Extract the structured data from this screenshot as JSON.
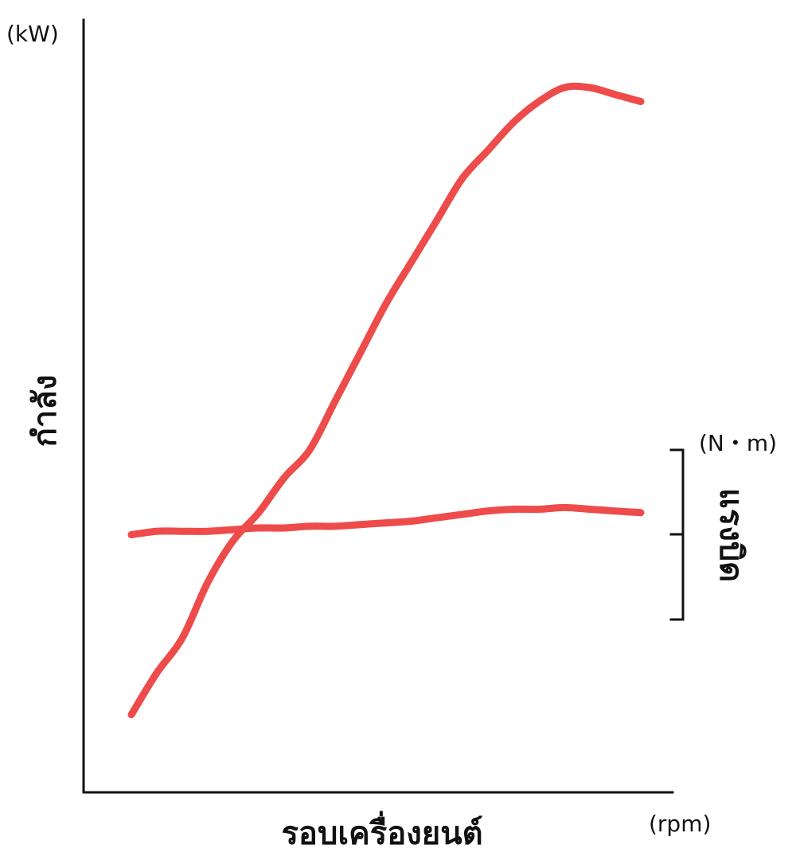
{
  "chart_data": {
    "type": "line",
    "xlabel": "รอบเครื่องยนต์",
    "xunit": "(rpm)",
    "ylabel": "กำลัง",
    "yunit": "(kW)",
    "y2label": "แรงบิด",
    "y2unit": "(N・m)",
    "line_color": "#ee4b4b",
    "axis_color": "#111111",
    "ticks": "none",
    "grid": false,
    "x": [
      0,
      0.05,
      0.1,
      0.15,
      0.2,
      0.25,
      0.3,
      0.35,
      0.4,
      0.45,
      0.5,
      0.55,
      0.6,
      0.65,
      0.7,
      0.75,
      0.8,
      0.85,
      0.9,
      0.95,
      1.0
    ],
    "series": [
      {
        "values": [
          0.1,
          0.16,
          0.21,
          0.29,
          0.35,
          0.39,
          0.44,
          0.48,
          0.55,
          0.62,
          0.69,
          0.75,
          0.81,
          0.87,
          0.91,
          0.95,
          0.98,
          1.0,
          1.0,
          0.99,
          0.98
        ],
        "axis": "left"
      },
      {
        "values": [
          0.5,
          0.52,
          0.52,
          0.52,
          0.53,
          0.54,
          0.54,
          0.55,
          0.55,
          0.56,
          0.57,
          0.58,
          0.6,
          0.62,
          0.64,
          0.65,
          0.65,
          0.66,
          0.65,
          0.64,
          0.63
        ],
        "axis": "right"
      }
    ]
  }
}
